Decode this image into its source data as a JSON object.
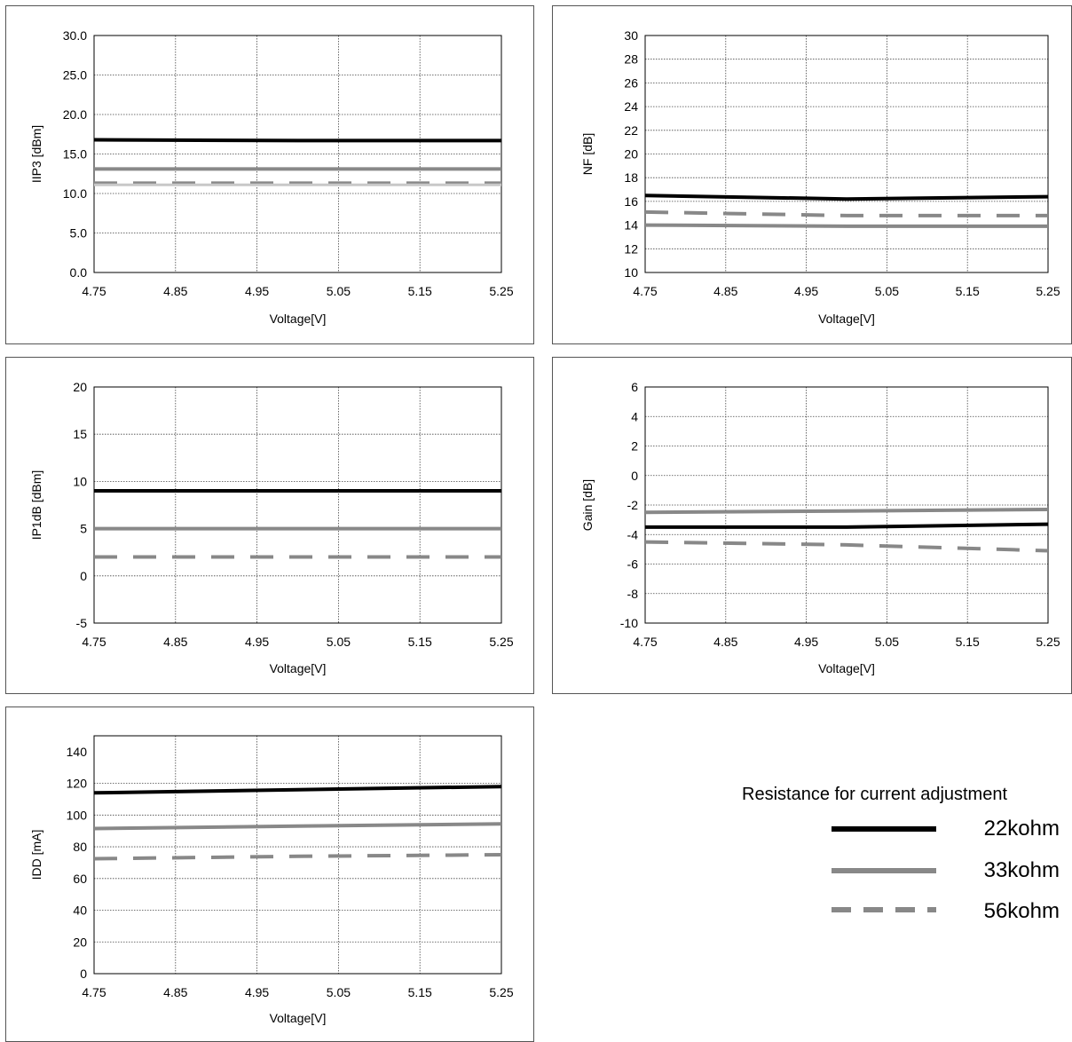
{
  "legend": {
    "title": "Resistance for current adjustment",
    "items": [
      {
        "label": "22kohm",
        "color": "#000000",
        "style": "solid"
      },
      {
        "label": "33kohm",
        "color": "#888888",
        "style": "solid"
      },
      {
        "label": "56kohm",
        "color": "#888888",
        "style": "dashed"
      }
    ]
  },
  "chart_data": [
    {
      "type": "line",
      "title": "",
      "xlabel": "Voltage[V]",
      "ylabel": "IIP3 [dBm]",
      "x": [
        4.75,
        5.0,
        5.25
      ],
      "xticks": [
        "4.75",
        "4.85",
        "4.95",
        "5.05",
        "5.15",
        "5.25"
      ],
      "xlim": [
        4.75,
        5.25
      ],
      "ylim": [
        0,
        30
      ],
      "yticks": [
        "0.0",
        "5.0",
        "10.0",
        "15.0",
        "20.0",
        "25.0",
        "30.0"
      ],
      "grid": true,
      "series": [
        {
          "name": "22kohm",
          "values": [
            16.8,
            16.7,
            16.7
          ],
          "color": "#000000",
          "style": "solid"
        },
        {
          "name": "33kohm",
          "values": [
            13.1,
            13.1,
            13.1
          ],
          "color": "#888888",
          "style": "solid"
        },
        {
          "name": "56kohm",
          "values": [
            11.3,
            11.3,
            11.3
          ],
          "color": "#888888",
          "style": "dashed"
        },
        {
          "name": "",
          "values": [
            11.1,
            11.1,
            11.1
          ],
          "color": "#c8c8c8",
          "style": "solid"
        }
      ]
    },
    {
      "type": "line",
      "title": "",
      "xlabel": "Voltage[V]",
      "ylabel": "NF [dB]",
      "x": [
        4.75,
        5.0,
        5.25
      ],
      "xticks": [
        "4.75",
        "4.85",
        "4.95",
        "5.05",
        "5.15",
        "5.25"
      ],
      "xlim": [
        4.75,
        5.25
      ],
      "ylim": [
        10,
        30
      ],
      "yticks": [
        "10",
        "12",
        "14",
        "16",
        "18",
        "20",
        "22",
        "24",
        "26",
        "28",
        "30"
      ],
      "grid": true,
      "series": [
        {
          "name": "22kohm",
          "values": [
            16.5,
            16.2,
            16.4
          ],
          "color": "#000000",
          "style": "solid"
        },
        {
          "name": "33kohm",
          "values": [
            14.0,
            13.9,
            13.9
          ],
          "color": "#888888",
          "style": "solid"
        },
        {
          "name": "56kohm",
          "values": [
            15.1,
            14.8,
            14.8
          ],
          "color": "#888888",
          "style": "dashed"
        }
      ]
    },
    {
      "type": "line",
      "title": "",
      "xlabel": "Voltage[V]",
      "ylabel": "IP1dB [dBm]",
      "x": [
        4.75,
        5.0,
        5.25
      ],
      "xticks": [
        "4.75",
        "4.85",
        "4.95",
        "5.05",
        "5.15",
        "5.25"
      ],
      "xlim": [
        4.75,
        5.25
      ],
      "ylim": [
        -5,
        20
      ],
      "yticks": [
        "-5",
        "0",
        "5",
        "10",
        "15",
        "20"
      ],
      "grid": true,
      "series": [
        {
          "name": "22kohm",
          "values": [
            9.0,
            9.0,
            9.0
          ],
          "color": "#000000",
          "style": "solid"
        },
        {
          "name": "33kohm",
          "values": [
            5.0,
            5.0,
            5.0
          ],
          "color": "#888888",
          "style": "solid"
        },
        {
          "name": "56kohm",
          "values": [
            2.0,
            2.0,
            2.0
          ],
          "color": "#888888",
          "style": "dashed"
        }
      ]
    },
    {
      "type": "line",
      "title": "",
      "xlabel": "Voltage[V]",
      "ylabel": "Gain [dB]",
      "x": [
        4.75,
        5.0,
        5.25
      ],
      "xticks": [
        "4.75",
        "4.85",
        "4.95",
        "5.05",
        "5.15",
        "5.25"
      ],
      "xlim": [
        4.75,
        5.25
      ],
      "ylim": [
        -10,
        6
      ],
      "yticks": [
        "-10",
        "-8",
        "-6",
        "-4",
        "-2",
        "0",
        "2",
        "4",
        "6"
      ],
      "grid": true,
      "series": [
        {
          "name": "22kohm",
          "values": [
            -3.5,
            -3.5,
            -3.3
          ],
          "color": "#000000",
          "style": "solid"
        },
        {
          "name": "33kohm",
          "values": [
            -2.5,
            -2.4,
            -2.3
          ],
          "color": "#888888",
          "style": "solid"
        },
        {
          "name": "56kohm",
          "values": [
            -4.5,
            -4.7,
            -5.1
          ],
          "color": "#888888",
          "style": "dashed"
        }
      ]
    },
    {
      "type": "line",
      "title": "",
      "xlabel": "Voltage[V]",
      "ylabel": "IDD [mA]",
      "x": [
        4.75,
        5.0,
        5.25
      ],
      "xticks": [
        "4.75",
        "4.85",
        "4.95",
        "5.05",
        "5.15",
        "5.25"
      ],
      "xlim": [
        4.75,
        5.25
      ],
      "ylim": [
        0,
        150
      ],
      "yticks": [
        "0",
        "20",
        "40",
        "60",
        "80",
        "100",
        "120",
        "140"
      ],
      "grid": true,
      "series": [
        {
          "name": "22kohm",
          "values": [
            114,
            116,
            118
          ],
          "color": "#000000",
          "style": "solid"
        },
        {
          "name": "33kohm",
          "values": [
            91.5,
            93,
            94.5
          ],
          "color": "#888888",
          "style": "solid"
        },
        {
          "name": "56kohm",
          "values": [
            72.5,
            74,
            75
          ],
          "color": "#888888",
          "style": "dashed"
        }
      ]
    }
  ]
}
